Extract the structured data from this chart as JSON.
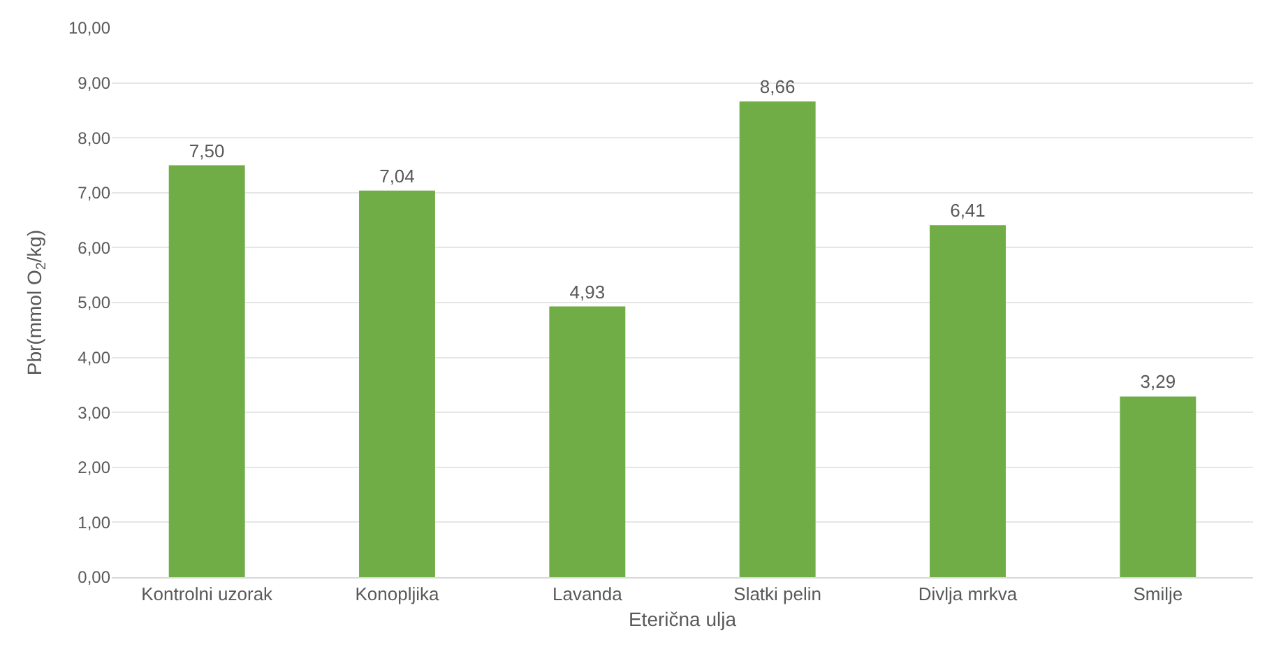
{
  "chart_data": {
    "type": "bar",
    "xlabel": "Eterična ulja",
    "ylabel": "Pbr(mmol O$_{2}$/kg)",
    "categories": [
      "Kontrolni uzorak",
      "Konopljika",
      "Lavanda",
      "Slatki pelin",
      "Divlja mrkva",
      "Smilje"
    ],
    "values": [
      7.5,
      7.04,
      4.93,
      8.66,
      6.41,
      3.29
    ],
    "value_labels": [
      "7,50",
      "7,04",
      "4,93",
      "8,66",
      "6,41",
      "3,29"
    ],
    "color": "#70ad47",
    "ylim": [
      0,
      10
    ],
    "yticks": [
      {
        "value": 0,
        "label": "0,00"
      },
      {
        "value": 1,
        "label": "1,00"
      },
      {
        "value": 2,
        "label": "2,00"
      },
      {
        "value": 3,
        "label": "3,00"
      },
      {
        "value": 4,
        "label": "4,00"
      },
      {
        "value": 5,
        "label": "5,00"
      },
      {
        "value": 6,
        "label": "6,00"
      },
      {
        "value": 7,
        "label": "7,00"
      },
      {
        "value": 8,
        "label": "8,00"
      },
      {
        "value": 9,
        "label": "9,00"
      },
      {
        "value": 10,
        "label": "10,00"
      }
    ],
    "grid": "y"
  }
}
